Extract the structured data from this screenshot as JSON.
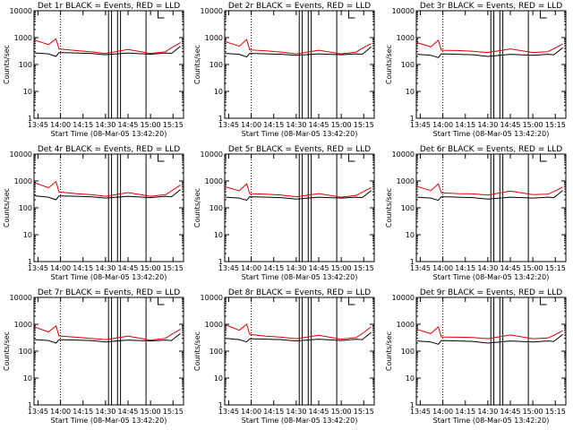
{
  "colors": {
    "events": "#000000",
    "lld": "#dd0000",
    "axes": "#000000",
    "background": "#ffffff"
  },
  "chart_data": [
    {
      "type": "line",
      "title": "Det 1r BLACK = Events, RED = LLD",
      "xlabel": "Start Time (08-Mar-05 13:42:20)",
      "ylabel": "Counts/sec",
      "x_ticks": [
        "13:45",
        "14:00",
        "14:15",
        "14:30",
        "14:45",
        "15:00",
        "15:15"
      ],
      "y_ticks": [
        "1",
        "10",
        "100",
        "1000",
        "10000"
      ],
      "y_scale": "log",
      "ylim": [
        1,
        10000
      ],
      "series": [
        {
          "name": "Events",
          "color": "#000000",
          "x": [
            "13:43",
            "13:52",
            "13:57",
            "13:59",
            "14:10",
            "14:20",
            "14:30",
            "14:45",
            "15:00",
            "15:10",
            "15:14",
            "15:20"
          ],
          "y": [
            270,
            250,
            200,
            280,
            270,
            260,
            230,
            270,
            240,
            270,
            260,
            480
          ]
        },
        {
          "name": "LLD",
          "color": "#dd0000",
          "x": [
            "13:43",
            "13:52",
            "13:57",
            "13:59",
            "14:10",
            "14:20",
            "14:30",
            "14:45",
            "15:00",
            "15:10",
            "15:14",
            "15:20"
          ],
          "y": [
            800,
            550,
            900,
            380,
            330,
            300,
            260,
            360,
            260,
            300,
            420,
            650
          ]
        }
      ]
    },
    {
      "type": "line",
      "title": "Det 2r BLACK = Events, RED = LLD",
      "xlabel": "Start Time (08-Mar-05 13:42:20)",
      "ylabel": "Counts/sec",
      "x_ticks": [
        "13:45",
        "14:00",
        "14:15",
        "14:30",
        "14:45",
        "15:00",
        "15:15"
      ],
      "y_ticks": [
        "1",
        "10",
        "100",
        "1000",
        "10000"
      ],
      "y_scale": "log",
      "ylim": [
        1,
        10000
      ],
      "series": [
        {
          "name": "Events",
          "color": "#000000",
          "x": [
            "13:43",
            "13:52",
            "13:57",
            "13:59",
            "14:10",
            "14:20",
            "14:30",
            "14:45",
            "15:00",
            "15:10",
            "15:14",
            "15:20"
          ],
          "y": [
            260,
            240,
            190,
            260,
            250,
            240,
            220,
            250,
            230,
            250,
            240,
            450
          ]
        },
        {
          "name": "LLD",
          "color": "#dd0000",
          "x": [
            "13:43",
            "13:52",
            "13:57",
            "13:59",
            "14:10",
            "14:20",
            "14:30",
            "14:45",
            "15:00",
            "15:10",
            "15:14",
            "15:20"
          ],
          "y": [
            700,
            480,
            850,
            350,
            320,
            290,
            250,
            340,
            250,
            290,
            400,
            600
          ]
        }
      ]
    },
    {
      "type": "line",
      "title": "Det 3r BLACK = Events, RED = LLD",
      "xlabel": "Start Time (08-Mar-05 13:42:20)",
      "ylabel": "Counts/sec",
      "x_ticks": [
        "13:45",
        "14:00",
        "14:15",
        "14:30",
        "14:45",
        "15:00",
        "15:15"
      ],
      "y_ticks": [
        "1",
        "10",
        "100",
        "1000",
        "10000"
      ],
      "y_scale": "log",
      "ylim": [
        1,
        10000
      ],
      "series": [
        {
          "name": "Events",
          "color": "#000000",
          "x": [
            "13:43",
            "13:52",
            "13:57",
            "13:59",
            "14:10",
            "14:20",
            "14:30",
            "14:45",
            "15:00",
            "15:10",
            "15:14",
            "15:20"
          ],
          "y": [
            240,
            220,
            180,
            250,
            240,
            230,
            200,
            240,
            220,
            240,
            230,
            420
          ]
        },
        {
          "name": "LLD",
          "color": "#dd0000",
          "x": [
            "13:43",
            "13:52",
            "13:57",
            "13:59",
            "14:10",
            "14:20",
            "14:30",
            "14:45",
            "15:00",
            "15:10",
            "15:14",
            "15:20"
          ],
          "y": [
            650,
            450,
            800,
            340,
            330,
            310,
            280,
            380,
            280,
            300,
            390,
            580
          ]
        }
      ]
    },
    {
      "type": "line",
      "title": "Det 4r BLACK = Events, RED = LLD",
      "xlabel": "Start Time (08-Mar-05 13:42:20)",
      "ylabel": "Counts/sec",
      "x_ticks": [
        "13:45",
        "14:00",
        "14:15",
        "14:30",
        "14:45",
        "15:00",
        "15:15"
      ],
      "y_ticks": [
        "1",
        "10",
        "100",
        "1000",
        "10000"
      ],
      "y_scale": "log",
      "ylim": [
        1,
        10000
      ],
      "series": [
        {
          "name": "Events",
          "color": "#000000",
          "x": [
            "13:43",
            "13:52",
            "13:57",
            "13:59",
            "14:10",
            "14:20",
            "14:30",
            "14:45",
            "15:00",
            "15:10",
            "15:14",
            "15:20"
          ],
          "y": [
            280,
            250,
            200,
            280,
            270,
            260,
            230,
            270,
            240,
            270,
            260,
            480
          ]
        },
        {
          "name": "LLD",
          "color": "#dd0000",
          "x": [
            "13:43",
            "13:52",
            "13:57",
            "13:59",
            "14:10",
            "14:20",
            "14:30",
            "14:45",
            "15:00",
            "15:10",
            "15:14",
            "15:20"
          ],
          "y": [
            850,
            560,
            950,
            390,
            340,
            310,
            270,
            370,
            270,
            310,
            430,
            700
          ]
        }
      ]
    },
    {
      "type": "line",
      "title": "Det 5r BLACK = Events, RED = LLD",
      "xlabel": "Start Time (08-Mar-05 13:42:20)",
      "ylabel": "Counts/sec",
      "x_ticks": [
        "13:45",
        "14:00",
        "14:15",
        "14:30",
        "14:45",
        "15:00",
        "15:15"
      ],
      "y_ticks": [
        "1",
        "10",
        "100",
        "1000",
        "10000"
      ],
      "y_scale": "log",
      "ylim": [
        1,
        10000
      ],
      "series": [
        {
          "name": "Events",
          "color": "#000000",
          "x": [
            "13:43",
            "13:52",
            "13:57",
            "13:59",
            "14:10",
            "14:20",
            "14:30",
            "14:45",
            "15:00",
            "15:10",
            "15:14",
            "15:20"
          ],
          "y": [
            250,
            230,
            190,
            260,
            250,
            240,
            210,
            250,
            230,
            250,
            240,
            440
          ]
        },
        {
          "name": "LLD",
          "color": "#dd0000",
          "x": [
            "13:43",
            "13:52",
            "13:57",
            "13:59",
            "14:10",
            "14:20",
            "14:30",
            "14:45",
            "15:00",
            "15:10",
            "15:14",
            "15:20"
          ],
          "y": [
            600,
            430,
            780,
            340,
            320,
            300,
            260,
            340,
            250,
            290,
            380,
            560
          ]
        }
      ]
    },
    {
      "type": "line",
      "title": "Det 6r BLACK = Events, RED = LLD",
      "xlabel": "Start Time (08-Mar-05 13:42:20)",
      "ylabel": "Counts/sec",
      "x_ticks": [
        "13:45",
        "14:00",
        "14:15",
        "14:30",
        "14:45",
        "15:00",
        "15:15"
      ],
      "y_ticks": [
        "1",
        "10",
        "100",
        "1000",
        "10000"
      ],
      "y_scale": "log",
      "ylim": [
        1,
        10000
      ],
      "series": [
        {
          "name": "Events",
          "color": "#000000",
          "x": [
            "13:43",
            "13:52",
            "13:57",
            "13:59",
            "14:10",
            "14:20",
            "14:30",
            "14:45",
            "15:00",
            "15:10",
            "15:14",
            "15:20"
          ],
          "y": [
            250,
            230,
            190,
            260,
            250,
            240,
            210,
            250,
            230,
            250,
            240,
            440
          ]
        },
        {
          "name": "LLD",
          "color": "#dd0000",
          "x": [
            "13:43",
            "13:52",
            "13:57",
            "13:59",
            "14:10",
            "14:20",
            "14:30",
            "14:45",
            "15:00",
            "15:10",
            "15:14",
            "15:20"
          ],
          "y": [
            620,
            440,
            780,
            360,
            340,
            330,
            300,
            420,
            310,
            320,
            400,
            600
          ]
        }
      ]
    },
    {
      "type": "line",
      "title": "Det 7r BLACK = Events, RED = LLD",
      "xlabel": "Start Time (08-Mar-05 13:42:20)",
      "ylabel": "Counts/sec",
      "x_ticks": [
        "13:45",
        "14:00",
        "14:15",
        "14:30",
        "14:45",
        "15:00",
        "15:15"
      ],
      "y_ticks": [
        "1",
        "10",
        "100",
        "1000",
        "10000"
      ],
      "y_scale": "log",
      "ylim": [
        1,
        10000
      ],
      "series": [
        {
          "name": "Events",
          "color": "#000000",
          "x": [
            "13:43",
            "13:52",
            "13:57",
            "13:59",
            "14:10",
            "14:20",
            "14:30",
            "14:45",
            "15:00",
            "15:10",
            "15:14",
            "15:20"
          ],
          "y": [
            270,
            250,
            200,
            270,
            260,
            250,
            220,
            260,
            240,
            260,
            250,
            460
          ]
        },
        {
          "name": "LLD",
          "color": "#dd0000",
          "x": [
            "13:43",
            "13:52",
            "13:57",
            "13:59",
            "14:10",
            "14:20",
            "14:30",
            "14:45",
            "15:00",
            "15:10",
            "15:14",
            "15:20"
          ],
          "y": [
            780,
            520,
            880,
            370,
            330,
            300,
            270,
            360,
            260,
            300,
            420,
            650
          ]
        }
      ]
    },
    {
      "type": "line",
      "title": "Det 8r BLACK = Events, RED = LLD",
      "xlabel": "Start Time (08-Mar-05 13:42:20)",
      "ylabel": "Counts/sec",
      "x_ticks": [
        "13:45",
        "14:00",
        "14:15",
        "14:30",
        "14:45",
        "15:00",
        "15:15"
      ],
      "y_ticks": [
        "1",
        "10",
        "100",
        "1000",
        "10000"
      ],
      "y_scale": "log",
      "ylim": [
        1,
        10000
      ],
      "series": [
        {
          "name": "Events",
          "color": "#000000",
          "x": [
            "13:43",
            "13:52",
            "13:57",
            "13:59",
            "14:10",
            "14:20",
            "14:30",
            "14:45",
            "15:00",
            "15:10",
            "15:14",
            "15:20"
          ],
          "y": [
            300,
            270,
            220,
            290,
            280,
            270,
            240,
            280,
            250,
            280,
            270,
            500
          ]
        },
        {
          "name": "LLD",
          "color": "#dd0000",
          "x": [
            "13:43",
            "13:52",
            "13:57",
            "13:59",
            "14:10",
            "14:20",
            "14:30",
            "14:45",
            "15:00",
            "15:10",
            "15:14",
            "15:20"
          ],
          "y": [
            950,
            600,
            1000,
            420,
            360,
            330,
            290,
            390,
            280,
            320,
            450,
            800
          ]
        }
      ]
    },
    {
      "type": "line",
      "title": "Det 9r BLACK = Events, RED = LLD",
      "xlabel": "Start Time (08-Mar-05 13:42:20)",
      "ylabel": "Counts/sec",
      "x_ticks": [
        "13:45",
        "14:00",
        "14:15",
        "14:30",
        "14:45",
        "15:00",
        "15:15"
      ],
      "y_ticks": [
        "1",
        "10",
        "100",
        "1000",
        "10000"
      ],
      "y_scale": "log",
      "ylim": [
        1,
        10000
      ],
      "series": [
        {
          "name": "Events",
          "color": "#000000",
          "x": [
            "13:43",
            "13:52",
            "13:57",
            "13:59",
            "14:10",
            "14:20",
            "14:30",
            "14:45",
            "15:00",
            "15:10",
            "15:14",
            "15:20"
          ],
          "y": [
            240,
            220,
            180,
            250,
            240,
            230,
            200,
            240,
            220,
            240,
            230,
            420
          ]
        },
        {
          "name": "LLD",
          "color": "#dd0000",
          "x": [
            "13:43",
            "13:52",
            "13:57",
            "13:59",
            "14:10",
            "14:20",
            "14:30",
            "14:45",
            "15:00",
            "15:10",
            "15:14",
            "15:20"
          ],
          "y": [
            640,
            450,
            800,
            340,
            330,
            320,
            290,
            400,
            290,
            310,
            390,
            580
          ]
        }
      ]
    }
  ]
}
